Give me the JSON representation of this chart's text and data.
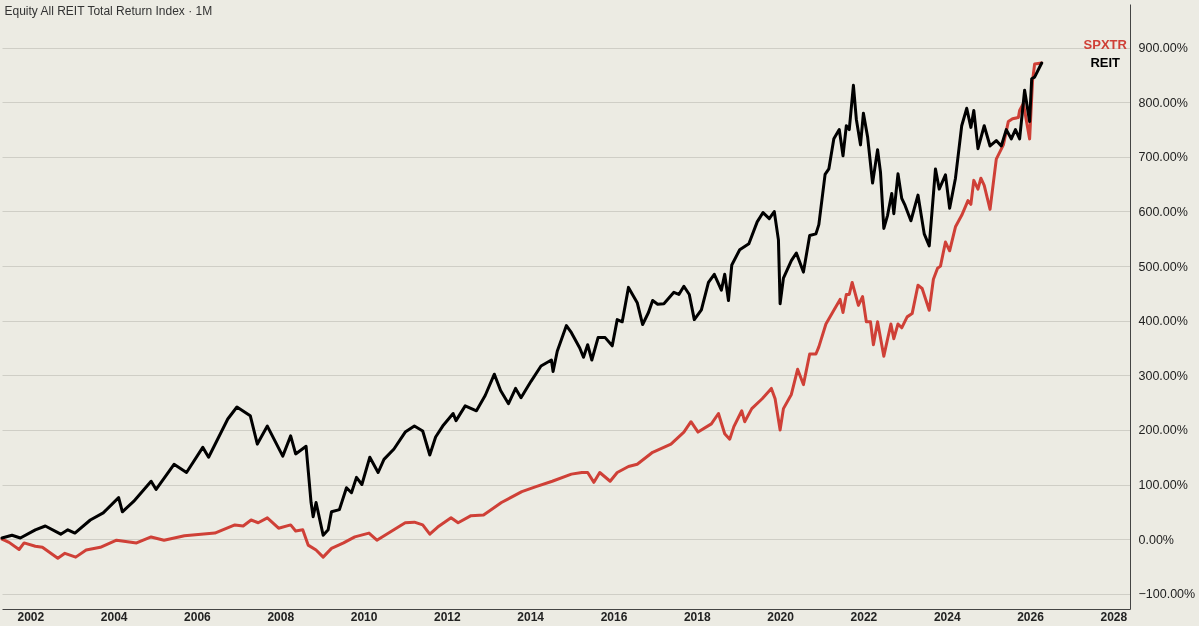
{
  "chart_data": {
    "type": "line",
    "title": "Equity All REIT Total Return Index · 1M",
    "xlim": [
      2001.32,
      2028.4
    ],
    "xticks": [
      2002,
      2004,
      2006,
      2008,
      2010,
      2012,
      2014,
      2016,
      2018,
      2020,
      2022,
      2024,
      2026,
      2028
    ],
    "ylim": [
      -128,
      980
    ],
    "yticks": [
      {
        "value": -100,
        "label": "−100.00%"
      },
      {
        "value": 0,
        "label": "0.00%"
      },
      {
        "value": 100,
        "label": "100.00%"
      },
      {
        "value": 200,
        "label": "200.00%"
      },
      {
        "value": 300,
        "label": "300.00%"
      },
      {
        "value": 400,
        "label": "400.00%"
      },
      {
        "value": 500,
        "label": "500.00%"
      },
      {
        "value": 600,
        "label": "600.00%"
      },
      {
        "value": 700,
        "label": "700.00%"
      },
      {
        "value": 800,
        "label": "800.00%"
      },
      {
        "value": 900,
        "label": "900.00%"
      }
    ],
    "grid": "y",
    "legend": "top right",
    "marker": "none",
    "line_style": "solid",
    "series": [
      {
        "name": "SPXTR",
        "color": "#cf4037",
        "x": [
          2001.32,
          2001.49,
          2001.73,
          2001.85,
          2002.12,
          2002.29,
          2002.66,
          2002.83,
          2003.09,
          2003.34,
          2003.68,
          2004.07,
          2004.55,
          2004.9,
          2005.21,
          2005.7,
          2006.43,
          2006.91,
          2007.11,
          2007.3,
          2007.47,
          2007.69,
          2007.96,
          2008.25,
          2008.37,
          2008.54,
          2008.67,
          2008.86,
          2009.03,
          2009.23,
          2009.52,
          2009.79,
          2010.13,
          2010.32,
          2010.64,
          2011.0,
          2011.22,
          2011.42,
          2011.59,
          2011.78,
          2012.1,
          2012.27,
          2012.58,
          2012.88,
          2013.31,
          2013.8,
          2014.14,
          2014.53,
          2014.99,
          2015.24,
          2015.38,
          2015.53,
          2015.67,
          2015.92,
          2016.09,
          2016.36,
          2016.57,
          2016.94,
          2017.38,
          2017.69,
          2017.86,
          2018.03,
          2018.35,
          2018.52,
          2018.67,
          2018.79,
          2018.89,
          2019.08,
          2019.15,
          2019.32,
          2019.57,
          2019.79,
          2019.88,
          2020.0,
          2020.08,
          2020.27,
          2020.42,
          2020.56,
          2020.71,
          2020.86,
          2020.93,
          2021.1,
          2021.29,
          2021.44,
          2021.51,
          2021.59,
          2021.66,
          2021.73,
          2021.88,
          2021.98,
          2022.07,
          2022.17,
          2022.24,
          2022.34,
          2022.49,
          2022.66,
          2022.73,
          2022.83,
          2022.92,
          2023.05,
          2023.17,
          2023.31,
          2023.41,
          2023.58,
          2023.68,
          2023.78,
          2023.85,
          2023.97,
          2024.07,
          2024.21,
          2024.36,
          2024.51,
          2024.58,
          2024.65,
          2024.75,
          2024.82,
          2024.9,
          2025.04,
          2025.19,
          2025.36,
          2025.48,
          2025.58,
          2025.72,
          2025.75,
          2025.84,
          2025.99,
          2026.06,
          2026.11,
          2026.28
        ],
        "values": [
          0,
          -6,
          -19,
          -7,
          -13,
          -15,
          -35,
          -26,
          -33,
          -20,
          -15,
          -2,
          -7,
          4,
          -2,
          6,
          11,
          26,
          24,
          35,
          30,
          39,
          20,
          26,
          15,
          17,
          -11,
          -20,
          -33,
          -17,
          -7,
          4,
          11,
          -2,
          13,
          30,
          31,
          26,
          9,
          22,
          39,
          30,
          43,
          44,
          67,
          87,
          96,
          106,
          119,
          122,
          122,
          104,
          122,
          106,
          122,
          133,
          137,
          159,
          174,
          196,
          215,
          196,
          211,
          230,
          193,
          183,
          206,
          235,
          215,
          239,
          257,
          276,
          257,
          200,
          239,
          265,
          311,
          283,
          339,
          339,
          352,
          394,
          419,
          439,
          415,
          448,
          448,
          470,
          428,
          444,
          398,
          398,
          356,
          398,
          335,
          394,
          367,
          394,
          387,
          407,
          413,
          465,
          459,
          419,
          476,
          496,
          500,
          544,
          528,
          572,
          593,
          620,
          613,
          657,
          641,
          661,
          648,
          604,
          696,
          722,
          765,
          770,
          772,
          785,
          798,
          733,
          839,
          870,
          872
        ]
      },
      {
        "name": "REIT",
        "color": "#000000",
        "x": [
          2001.32,
          2001.56,
          2001.76,
          2002.12,
          2002.36,
          2002.73,
          2002.9,
          2003.07,
          2003.44,
          2003.75,
          2004.12,
          2004.21,
          2004.48,
          2004.9,
          2005.02,
          2005.45,
          2005.75,
          2006.14,
          2006.28,
          2006.74,
          2006.96,
          2007.28,
          2007.45,
          2007.69,
          2008.06,
          2008.25,
          2008.37,
          2008.62,
          2008.74,
          2008.79,
          2008.86,
          2009.03,
          2009.15,
          2009.23,
          2009.42,
          2009.59,
          2009.71,
          2009.83,
          2009.96,
          2010.15,
          2010.35,
          2010.49,
          2010.73,
          2011.0,
          2011.22,
          2011.42,
          2011.59,
          2011.73,
          2011.9,
          2012.15,
          2012.22,
          2012.44,
          2012.71,
          2012.92,
          2013.14,
          2013.29,
          2013.48,
          2013.65,
          2013.78,
          2014.02,
          2014.26,
          2014.51,
          2014.55,
          2014.65,
          2014.87,
          2014.99,
          2015.19,
          2015.28,
          2015.38,
          2015.48,
          2015.63,
          2015.8,
          2015.97,
          2016.09,
          2016.21,
          2016.36,
          2016.57,
          2016.7,
          2016.84,
          2016.94,
          2017.06,
          2017.21,
          2017.45,
          2017.57,
          2017.69,
          2017.82,
          2017.94,
          2018.11,
          2018.28,
          2018.42,
          2018.59,
          2018.67,
          2018.76,
          2018.84,
          2019.03,
          2019.25,
          2019.45,
          2019.59,
          2019.74,
          2019.86,
          2019.96,
          2020.0,
          2020.08,
          2020.27,
          2020.39,
          2020.56,
          2020.71,
          2020.86,
          2020.93,
          2021.08,
          2021.17,
          2021.29,
          2021.42,
          2021.51,
          2021.59,
          2021.66,
          2021.76,
          2021.83,
          2021.93,
          2022.0,
          2022.1,
          2022.22,
          2022.34,
          2022.41,
          2022.49,
          2022.58,
          2022.68,
          2022.73,
          2022.83,
          2022.92,
          2023.0,
          2023.14,
          2023.31,
          2023.46,
          2023.58,
          2023.73,
          2023.82,
          2023.97,
          2024.07,
          2024.21,
          2024.36,
          2024.48,
          2024.58,
          2024.65,
          2024.75,
          2024.9,
          2025.04,
          2025.19,
          2025.31,
          2025.43,
          2025.55,
          2025.65,
          2025.75,
          2025.87,
          2025.99,
          2026.04,
          2026.11,
          2026.28
        ],
        "values": [
          2,
          7,
          2,
          17,
          24,
          9,
          17,
          11,
          35,
          48,
          76,
          50,
          69,
          106,
          91,
          137,
          122,
          168,
          150,
          220,
          242,
          226,
          174,
          207,
          152,
          189,
          156,
          170,
          67,
          41,
          67,
          7,
          17,
          50,
          54,
          94,
          85,
          113,
          100,
          150,
          122,
          146,
          165,
          196,
          207,
          198,
          154,
          187,
          207,
          230,
          217,
          244,
          235,
          263,
          302,
          272,
          248,
          276,
          259,
          289,
          317,
          328,
          307,
          344,
          391,
          378,
          350,
          333,
          356,
          328,
          369,
          369,
          354,
          402,
          398,
          461,
          433,
          393,
          415,
          437,
          430,
          431,
          452,
          448,
          463,
          448,
          402,
          420,
          470,
          485,
          456,
          485,
          437,
          502,
          530,
          541,
          581,
          598,
          587,
          600,
          548,
          431,
          478,
          510,
          524,
          489,
          556,
          559,
          576,
          668,
          678,
          733,
          750,
          702,
          757,
          750,
          831,
          769,
          722,
          780,
          737,
          652,
          713,
          672,
          569,
          593,
          633,
          596,
          669,
          624,
          611,
          583,
          630,
          559,
          537,
          678,
          641,
          667,
          606,
          661,
          757,
          789,
          754,
          785,
          715,
          757,
          720,
          730,
          720,
          750,
          733,
          750,
          733,
          822,
          765,
          843,
          846,
          872
        ]
      }
    ]
  }
}
